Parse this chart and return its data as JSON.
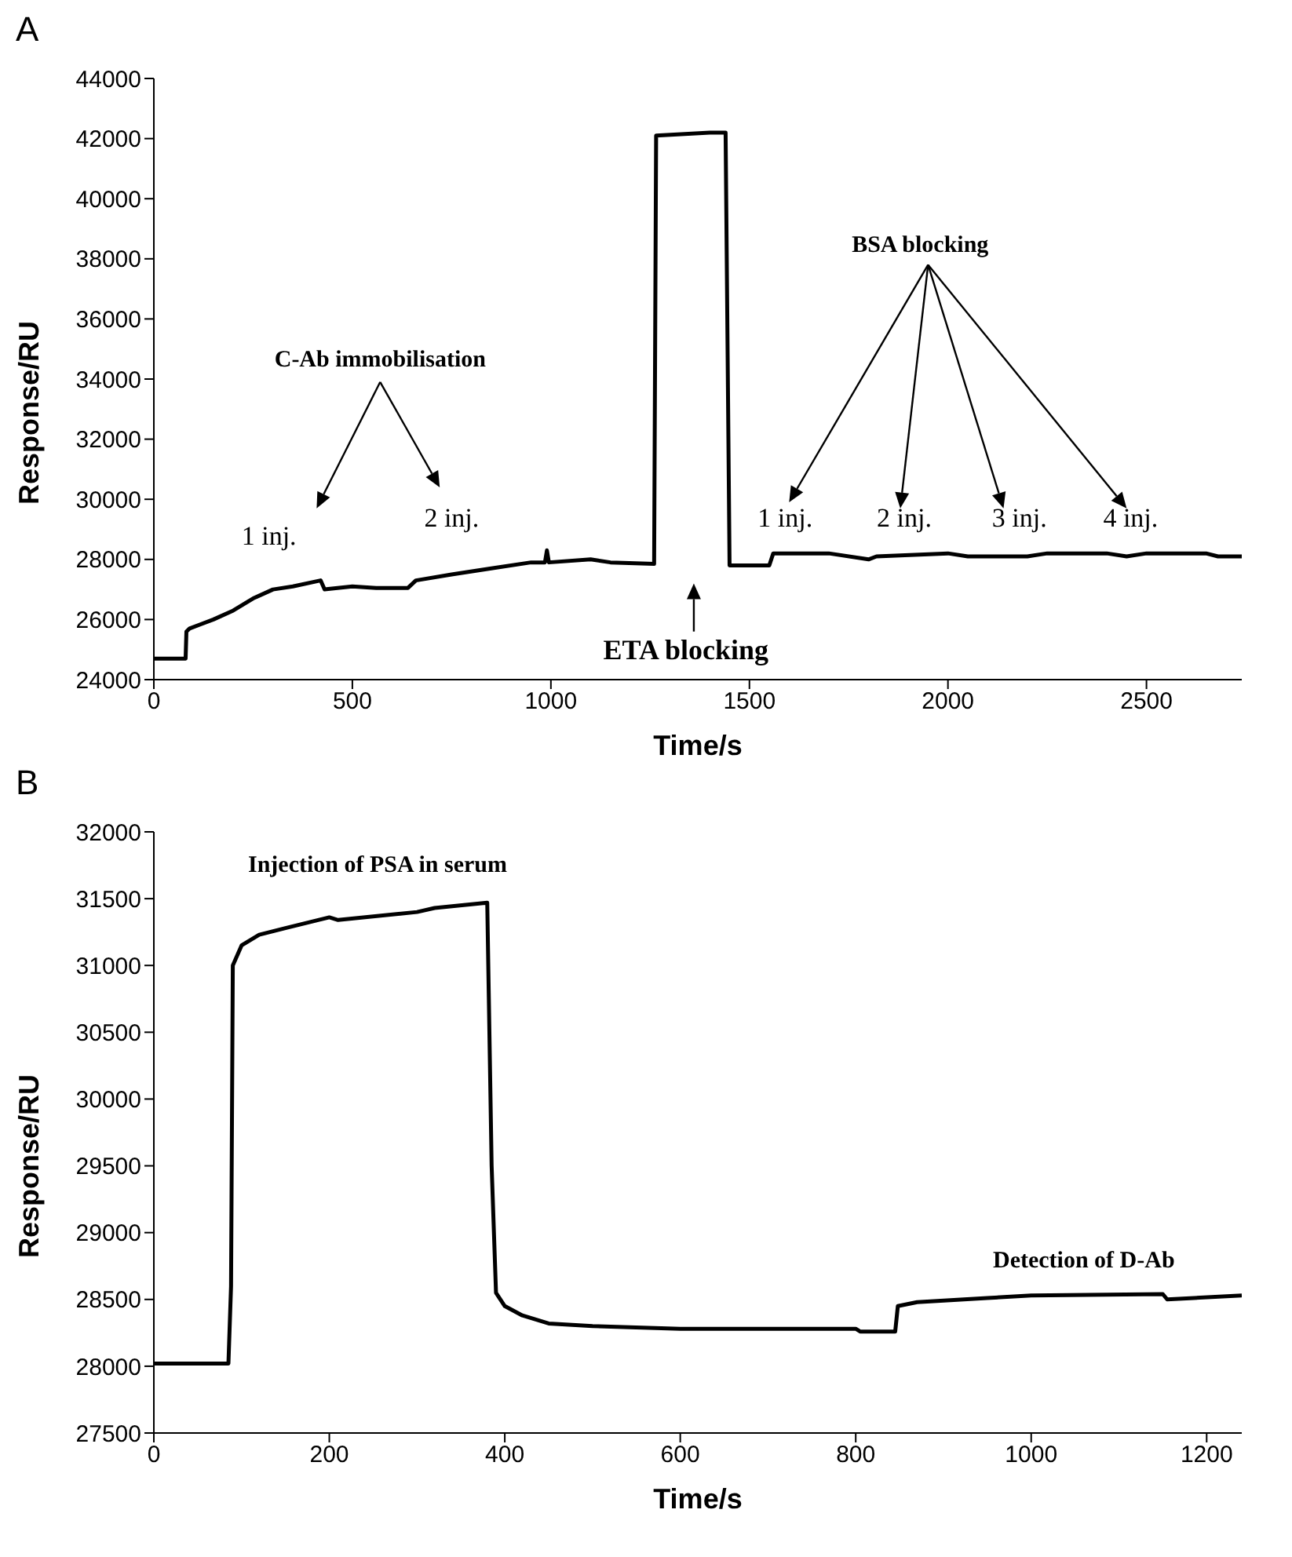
{
  "chart_data": [
    {
      "type": "line",
      "title": "A",
      "xlabel": "Time/s",
      "ylabel": "Response/RU",
      "marker": "none",
      "x": [
        0,
        80,
        82,
        90,
        150,
        200,
        250,
        300,
        350,
        420,
        430,
        500,
        560,
        640,
        660,
        750,
        850,
        950,
        985,
        990,
        995,
        1100,
        1150,
        1260,
        1265,
        1400,
        1440,
        1450,
        1550,
        1560,
        1700,
        1800,
        1820,
        2000,
        2050,
        2200,
        2250,
        2400,
        2450,
        2500,
        2650,
        2680,
        2740
      ],
      "series": [
        {
          "color": "#000000",
          "values": [
            24700,
            24700,
            25600,
            25700,
            26000,
            26300,
            26700,
            27000,
            27100,
            27300,
            27000,
            27100,
            27050,
            27050,
            27300,
            27500,
            27700,
            27900,
            27900,
            28300,
            27900,
            28000,
            27900,
            27850,
            42100,
            42200,
            42200,
            27800,
            27800,
            28200,
            28200,
            28000,
            28100,
            28200,
            28100,
            28100,
            28200,
            28200,
            28100,
            28200,
            28200,
            28100,
            28100
          ]
        }
      ],
      "xlim": [
        0,
        2740
      ],
      "xticks": [
        0,
        500,
        1000,
        1500,
        2000,
        2500
      ],
      "ylim": [
        24000,
        44000
      ],
      "yticks": [
        24000,
        26000,
        28000,
        30000,
        32000,
        34000,
        36000,
        38000,
        40000,
        42000,
        44000
      ],
      "annotations": [
        "C-Ab immobilisation",
        "1 inj.",
        "2 inj.",
        "ETA blocking",
        "BSA blocking",
        "1 inj.",
        "2 inj.",
        "3 inj.",
        "4 inj."
      ]
    },
    {
      "type": "line",
      "title": "B",
      "xlabel": "Time/s",
      "ylabel": "Response/RU",
      "marker": "none",
      "x": [
        0,
        85,
        88,
        90,
        100,
        120,
        150,
        200,
        210,
        300,
        320,
        380,
        385,
        390,
        400,
        420,
        450,
        500,
        600,
        800,
        805,
        845,
        848,
        870,
        950,
        1000,
        1150,
        1155,
        1240
      ],
      "series": [
        {
          "color": "#000000",
          "values": [
            28020,
            28020,
            28600,
            31000,
            31150,
            31230,
            31280,
            31360,
            31340,
            31400,
            31430,
            31470,
            29500,
            28550,
            28450,
            28380,
            28320,
            28300,
            28280,
            28280,
            28260,
            28260,
            28450,
            28480,
            28510,
            28530,
            28540,
            28500,
            28530
          ]
        }
      ],
      "xlim": [
        0,
        1240
      ],
      "xticks": [
        0,
        200,
        400,
        600,
        800,
        1000,
        1200
      ],
      "ylim": [
        27500,
        32000
      ],
      "yticks": [
        27500,
        28000,
        28500,
        29000,
        29500,
        30000,
        30500,
        31000,
        31500,
        32000
      ],
      "annotations": [
        "Injection of PSA in serum",
        "Detection of D-Ab"
      ]
    }
  ]
}
